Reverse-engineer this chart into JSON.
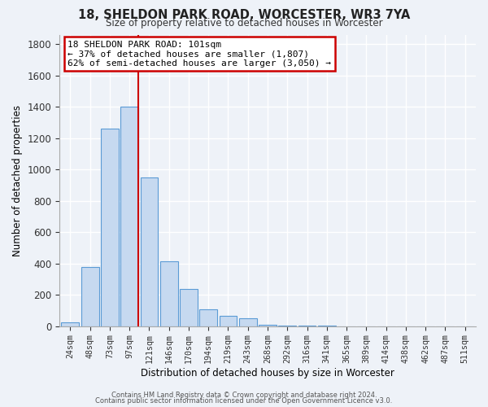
{
  "title": "18, SHELDON PARK ROAD, WORCESTER, WR3 7YA",
  "subtitle": "Size of property relative to detached houses in Worcester",
  "xlabel": "Distribution of detached houses by size in Worcester",
  "ylabel": "Number of detached properties",
  "bin_labels": [
    "24sqm",
    "48sqm",
    "73sqm",
    "97sqm",
    "121sqm",
    "146sqm",
    "170sqm",
    "194sqm",
    "219sqm",
    "243sqm",
    "268sqm",
    "292sqm",
    "316sqm",
    "341sqm",
    "365sqm",
    "389sqm",
    "414sqm",
    "438sqm",
    "462sqm",
    "487sqm",
    "511sqm"
  ],
  "bin_values": [
    25,
    380,
    1260,
    1400,
    950,
    415,
    235,
    110,
    65,
    50,
    10,
    5,
    3,
    2,
    1,
    1,
    0,
    0,
    0,
    0,
    0
  ],
  "bar_color": "#c6d9f0",
  "bar_edge_color": "#5b9bd5",
  "annotation_line1": "18 SHELDON PARK ROAD: 101sqm",
  "annotation_line2": "← 37% of detached houses are smaller (1,807)",
  "annotation_line3": "62% of semi-detached houses are larger (3,050) →",
  "annotation_box_color": "#ffffff",
  "annotation_box_edge_color": "#cc0000",
  "vline_color": "#cc0000",
  "ylim": [
    0,
    1860
  ],
  "yticks": [
    0,
    200,
    400,
    600,
    800,
    1000,
    1200,
    1400,
    1600,
    1800
  ],
  "footer1": "Contains HM Land Registry data © Crown copyright and database right 2024.",
  "footer2": "Contains public sector information licensed under the Open Government Licence v3.0.",
  "bg_color": "#eef2f8",
  "grid_color": "#ffffff",
  "title_fontsize": 10.5,
  "subtitle_fontsize": 8.5
}
